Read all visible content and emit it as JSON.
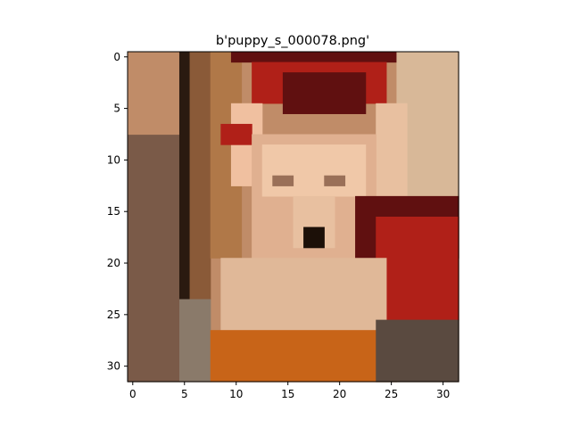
{
  "chart_data": {
    "type": "image",
    "title": "b'puppy_s_000078.png'",
    "image_size": [
      32,
      32
    ],
    "xlim": [
      -0.5,
      31.5
    ],
    "ylim": [
      31.5,
      -0.5
    ],
    "x_ticks": [
      0,
      5,
      10,
      15,
      20,
      25,
      30
    ],
    "y_ticks": [
      0,
      5,
      10,
      15,
      20,
      25,
      30
    ],
    "y_inverted": true,
    "grid": false,
    "colors": {
      "wall_light": "#c08c68",
      "wall_dark": "#7a5a48",
      "door_dark": "#2a1a10",
      "fur": "#e0b090",
      "fur_light": "#f0c8a8",
      "eye": "#9a7058",
      "nose": "#1c1008",
      "red_fabric": "#b02018",
      "dark_red": "#601010",
      "orange_floor": "#c86418",
      "right_wall": "#d8b898",
      "gray": "#8a7a6a"
    }
  }
}
